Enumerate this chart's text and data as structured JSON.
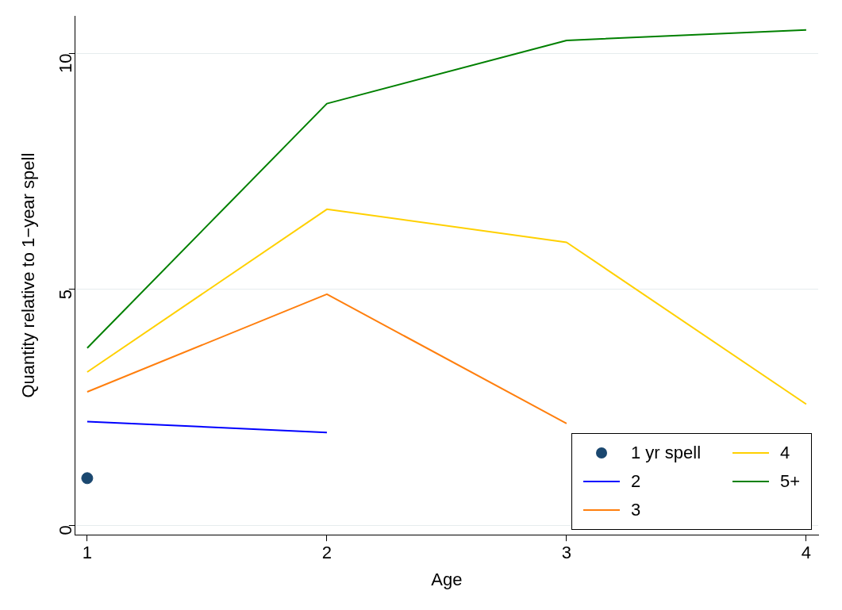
{
  "chart_data": {
    "type": "line",
    "xlabel": "Age",
    "ylabel": "Quantity relative to 1−year spell",
    "xlim": [
      0.95,
      4.05
    ],
    "xticks": [
      1,
      2,
      3,
      4
    ],
    "ylim": [
      -0.2,
      10.8
    ],
    "yticks": [
      0,
      5,
      10
    ],
    "grid": "y",
    "legend": "bottom right",
    "series": [
      {
        "name": "1 yr spell",
        "type": "scatter",
        "marker": "circle",
        "color": "#1a476f",
        "x": [
          1
        ],
        "values": [
          1.0
        ]
      },
      {
        "name": "2",
        "color": "#0000ff",
        "x": [
          1,
          2
        ],
        "values": [
          2.2,
          1.97
        ]
      },
      {
        "name": "3",
        "color": "#ff7f0e",
        "x": [
          1,
          2,
          3
        ],
        "values": [
          2.83,
          4.9,
          2.16
        ]
      },
      {
        "name": "4",
        "color": "#ffd000",
        "x": [
          1,
          2,
          3,
          4
        ],
        "values": [
          3.25,
          6.7,
          6.0,
          2.57
        ]
      },
      {
        "name": "5+",
        "color": "#008000",
        "x": [
          1,
          2,
          3,
          4
        ],
        "values": [
          3.76,
          8.94,
          10.28,
          10.5
        ]
      }
    ]
  }
}
